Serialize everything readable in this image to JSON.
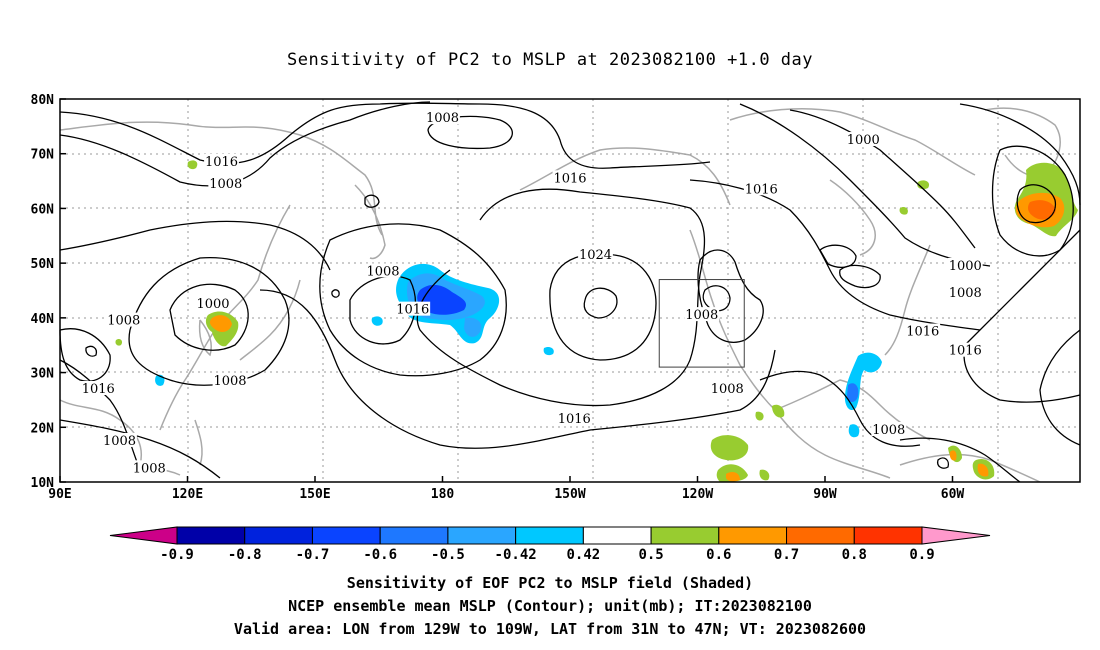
{
  "title": "Sensitivity of PC2 to MSLP at 2023082100 +1.0 day",
  "lat_labels": [
    "80N",
    "70N",
    "60N",
    "50N",
    "40N",
    "30N",
    "20N",
    "10N"
  ],
  "lon_labels": [
    "90E",
    "120E",
    "150E",
    "180",
    "150W",
    "120W",
    "90W",
    "60W"
  ],
  "contour_labels": [
    {
      "text": "1008",
      "lon": 180,
      "lat": 76.5
    },
    {
      "text": "1016",
      "lon": 128,
      "lat": 68.5
    },
    {
      "text": "1008",
      "lon": 129,
      "lat": 64.5
    },
    {
      "text": "1016",
      "lon": -150,
      "lat": 65.5
    },
    {
      "text": "1016",
      "lon": -105,
      "lat": 63.5
    },
    {
      "text": "1000",
      "lon": -81,
      "lat": 72.5
    },
    {
      "text": "1000",
      "lon": -57,
      "lat": 49.5
    },
    {
      "text": "1008",
      "lon": -57,
      "lat": 44.5
    },
    {
      "text": "1024",
      "lon": -144,
      "lat": 51.5
    },
    {
      "text": "1008",
      "lon": 166,
      "lat": 48.5
    },
    {
      "text": "1016",
      "lon": 173,
      "lat": 41.5
    },
    {
      "text": "1000",
      "lon": 126,
      "lat": 42.5
    },
    {
      "text": "1008",
      "lon": 105,
      "lat": 39.5
    },
    {
      "text": "1008",
      "lon": -119,
      "lat": 40.5
    },
    {
      "text": "1008",
      "lon": 130,
      "lat": 28.5
    },
    {
      "text": "1016",
      "lon": 99,
      "lat": 27.0
    },
    {
      "text": "1016",
      "lon": -67,
      "lat": 37.5
    },
    {
      "text": "1016",
      "lon": -57,
      "lat": 34.0
    },
    {
      "text": "1008",
      "lon": -113,
      "lat": 27.0
    },
    {
      "text": "1016",
      "lon": -149,
      "lat": 21.5
    },
    {
      "text": "1008",
      "lon": -75,
      "lat": 19.5
    },
    {
      "text": "1008",
      "lon": 104,
      "lat": 17.5
    },
    {
      "text": "1008",
      "lon": 111,
      "lat": 12.5
    }
  ],
  "colorbar": {
    "labels": [
      "-0.9",
      "-0.8",
      "-0.7",
      "-0.6",
      "-0.5",
      "-0.42",
      "0.42",
      "0.5",
      "0.6",
      "0.7",
      "0.8",
      "0.9"
    ],
    "colors": [
      "#0000a8",
      "#0022dd",
      "#0a44ff",
      "#1e78ff",
      "#2aa6ff",
      "#00c8ff",
      "#ffffff",
      "#98cc30",
      "#ff9900",
      "#ff6a00",
      "#ff3300",
      "#ff0000"
    ],
    "low_color": "#cc0088",
    "high_color": "#ff99cc"
  },
  "valid_area": {
    "lon_min": -129,
    "lon_max": -109,
    "lat_min": 31,
    "lat_max": 47
  },
  "captions": [
    "Sensitivity of EOF PC2 to MSLP field (Shaded)",
    "NCEP ensemble mean MSLP (Contour); unit(mb); IT:2023082100",
    "Valid area: LON from 129W to 109W, LAT from 31N to 47N; VT: 2023082600"
  ]
}
